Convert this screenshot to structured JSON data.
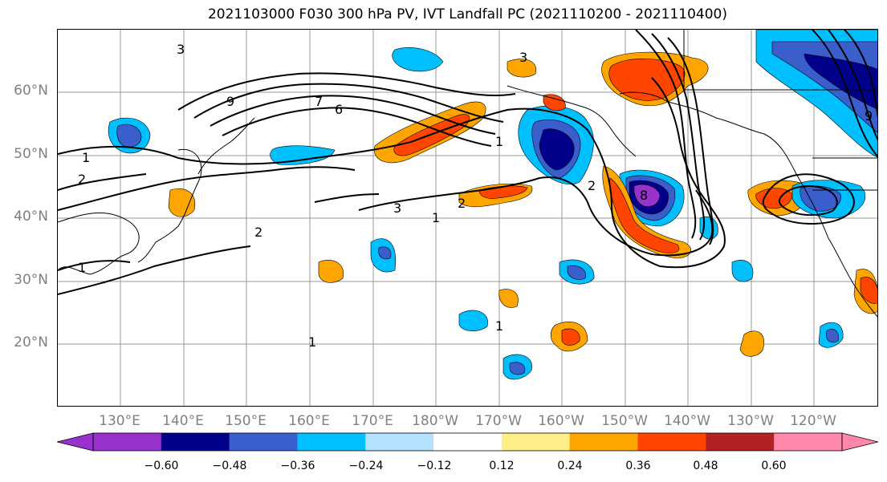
{
  "title": "2021103000 F030 300 hPa PV, IVT Landfall PC (2021110200 - 2021110400)",
  "lat_labels": [
    "60°N",
    "50°N",
    "40°N",
    "30°N",
    "20°N"
  ],
  "lon_labels": [
    "130°E",
    "140°E",
    "150°E",
    "160°E",
    "170°E",
    "180°W",
    "170°W",
    "160°W",
    "150°W",
    "140°W",
    "130°W",
    "120°W"
  ],
  "contour_labels": [
    "3",
    "9",
    "7",
    "6",
    "1",
    "2",
    "1",
    "2",
    "3",
    "1",
    "2",
    "1",
    "1",
    "2",
    "8",
    "1",
    "3",
    "9"
  ],
  "colorbar": {
    "ticks": [
      "−0.60",
      "−0.48",
      "−0.36",
      "−0.24",
      "−0.12",
      "0.12",
      "0.24",
      "0.36",
      "0.48",
      "0.60"
    ],
    "colors": [
      "#9932cc",
      "#00008b",
      "#3a5fcd",
      "#00bfff",
      "#b2e2ff",
      "#ffffff",
      "#ffee88",
      "#ffa500",
      "#ff4500",
      "#b22222",
      "#ff88aa"
    ]
  },
  "colors": {
    "positive_1": "#ffee88",
    "positive_2": "#ffa500",
    "positive_3": "#ff4500",
    "negative_1": "#00bfff",
    "negative_2": "#3a5fcd",
    "negative_3": "#00008b",
    "negative_4": "#9932cc"
  }
}
